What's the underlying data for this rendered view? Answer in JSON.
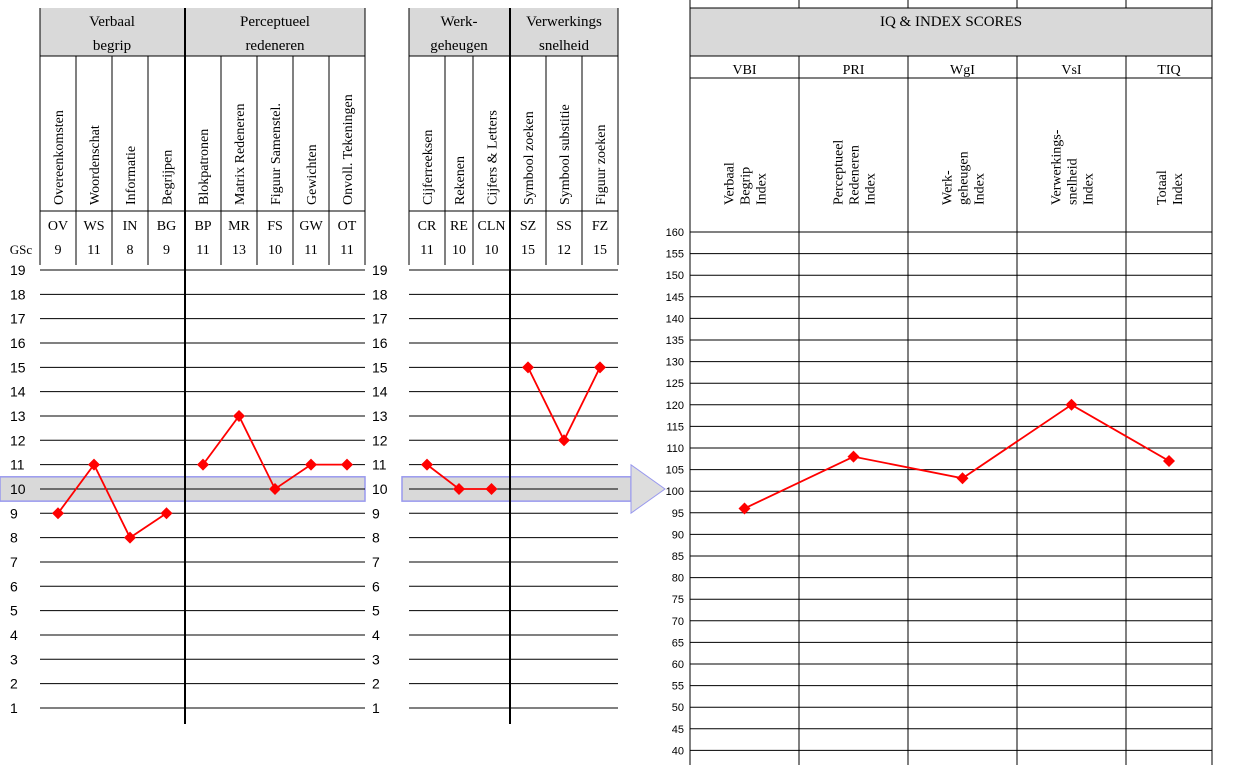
{
  "subtests": {
    "groups_left": [
      {
        "label_lines": [
          "Verbaal",
          "begrip"
        ]
      },
      {
        "label_lines": [
          "Perceptueel",
          "redeneren"
        ]
      }
    ],
    "groups_mid": [
      {
        "label_lines": [
          "Werk-",
          "geheugen"
        ]
      },
      {
        "label_lines": [
          "Verwerkings",
          "snelheid"
        ]
      }
    ],
    "gsc_label": "GSc",
    "items": [
      {
        "name": "Overeenkomsten",
        "abbr": "OV",
        "score": 9,
        "panel": "left"
      },
      {
        "name": "Woordenschat",
        "abbr": "WS",
        "score": 11,
        "panel": "left"
      },
      {
        "name": "Informatie",
        "abbr": "IN",
        "score": 8,
        "panel": "left"
      },
      {
        "name": "Begrijpen",
        "abbr": "BG",
        "score": 9,
        "panel": "left"
      },
      {
        "name": "Blokpatronen",
        "abbr": "BP",
        "score": 11,
        "panel": "left"
      },
      {
        "name": "Matrix Redeneren",
        "abbr": "MR",
        "score": 13,
        "panel": "left"
      },
      {
        "name": "Figuur Samenstel.",
        "abbr": "FS",
        "score": 10,
        "panel": "left"
      },
      {
        "name": "Gewichten",
        "abbr": "GW",
        "score": 11,
        "panel": "left"
      },
      {
        "name": "Onvoll. Tekeningen",
        "abbr": "OT",
        "score": 11,
        "panel": "left"
      },
      {
        "name": "Cijferreeksen",
        "abbr": "CR",
        "score": 11,
        "panel": "mid"
      },
      {
        "name": "Rekenen",
        "abbr": "RE",
        "score": 10,
        "panel": "mid"
      },
      {
        "name": "Cijfers & Letters",
        "abbr": "CLN",
        "score": 10,
        "panel": "mid"
      },
      {
        "name": "Symbool zoeken",
        "abbr": "SZ",
        "score": 15,
        "panel": "mid"
      },
      {
        "name": "Symbool substitie",
        "abbr": "SS",
        "score": 12,
        "panel": "mid"
      },
      {
        "name": "Figuur zoeken",
        "abbr": "FZ",
        "score": 15,
        "panel": "mid"
      }
    ],
    "y_ticks": [
      "1",
      "2",
      "3",
      "4",
      "5",
      "6",
      "7",
      "8",
      "9",
      "10",
      "11",
      "12",
      "13",
      "14",
      "15",
      "16",
      "17",
      "18",
      "19"
    ]
  },
  "index": {
    "title": "IQ & INDEX SCORES",
    "columns": [
      {
        "abbr": "VBI",
        "name_lines": [
          "Verbaal",
          "Begrip",
          "Index"
        ],
        "score": 96
      },
      {
        "abbr": "PRI",
        "name_lines": [
          "Perceptueel",
          "Redeneren",
          "Index"
        ],
        "score": 108
      },
      {
        "abbr": "WgI",
        "name_lines": [
          "Werk-",
          "geheugen",
          "Index"
        ],
        "score": 103
      },
      {
        "abbr": "VsI",
        "name_lines": [
          "Verwerkings-",
          "snelheid",
          "Index"
        ],
        "score": 120
      },
      {
        "abbr": "TIQ",
        "name_lines": [
          "Totaal",
          "Index"
        ],
        "score": 107
      }
    ],
    "y_ticks": [
      "40",
      "45",
      "50",
      "55",
      "60",
      "65",
      "70",
      "75",
      "80",
      "85",
      "90",
      "95",
      "100",
      "105",
      "110",
      "115",
      "120",
      "125",
      "130",
      "135",
      "140",
      "145",
      "150",
      "155",
      "160"
    ]
  },
  "chart_data": [
    {
      "type": "line",
      "categories": [
        "OV",
        "WS",
        "IN",
        "BG",
        "BP",
        "MR",
        "FS",
        "GW",
        "OT",
        "CR",
        "RE",
        "CLN",
        "SZ",
        "SS",
        "FZ"
      ],
      "series": [
        {
          "values": [
            9,
            11,
            8,
            9,
            null,
            null,
            null,
            null,
            null,
            null,
            null,
            null,
            null,
            null,
            null
          ]
        },
        {
          "values": [
            null,
            null,
            null,
            null,
            11,
            13,
            10,
            11,
            11,
            null,
            null,
            null,
            null,
            null,
            null
          ]
        },
        {
          "values": [
            null,
            null,
            null,
            null,
            null,
            null,
            null,
            null,
            null,
            11,
            10,
            10,
            null,
            null,
            null
          ]
        },
        {
          "values": [
            null,
            null,
            null,
            null,
            null,
            null,
            null,
            null,
            null,
            null,
            null,
            null,
            15,
            12,
            15
          ]
        }
      ],
      "ylabel": "GSc",
      "ylim": [
        1,
        19
      ],
      "highlight_band": 10,
      "grid": true,
      "marker": "diamond",
      "line_color": "#ff0000",
      "band_color": "#d9d9d9",
      "band_border_color": "#9999ee"
    },
    {
      "type": "line",
      "title": "IQ & INDEX SCORES",
      "categories": [
        "VBI",
        "PRI",
        "WgI",
        "VsI",
        "TIQ"
      ],
      "series": [
        {
          "values": [
            96,
            108,
            103,
            120,
            107
          ]
        }
      ],
      "ylim": [
        40,
        160
      ],
      "grid": true,
      "marker": "diamond",
      "line_color": "#ff0000"
    }
  ],
  "colors": {
    "header_bg": "#d9d9d9",
    "line": "#ff0000",
    "grid": "#000000",
    "arrow_fill": "#dddddd",
    "arrow_stroke": "#9999ee"
  }
}
